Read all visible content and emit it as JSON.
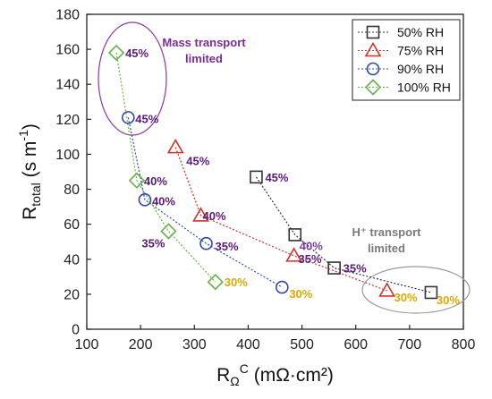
{
  "chart_data": {
    "type": "scatter",
    "xlabel": {
      "base": "R",
      "sub": "Ω",
      "sup": "C",
      "rest": " (mΩ·cm²)"
    },
    "ylabel": {
      "base": "R",
      "sub": "total",
      "rest": " (s m",
      "sup": "-1",
      "close": ")"
    },
    "xlim": [
      100,
      800
    ],
    "ylim": [
      0,
      180
    ],
    "xticks": [
      "100",
      "200",
      "300",
      "400",
      "500",
      "600",
      "700",
      "800"
    ],
    "yticks": [
      "0",
      "20",
      "40",
      "60",
      "80",
      "100",
      "120",
      "140",
      "160",
      "180"
    ],
    "legend_position": "top-right",
    "series": [
      {
        "name": "50% RH",
        "marker": "square",
        "color": "#333333",
        "points": [
          {
            "x": 415,
            "y": 87,
            "label": "45%",
            "label_color": "#5b1a78"
          },
          {
            "x": 487,
            "y": 54,
            "label": "40%",
            "label_color": "#7b3aa8"
          },
          {
            "x": 560,
            "y": 35,
            "label": "35%",
            "label_color": "#5b1a78"
          },
          {
            "x": 740,
            "y": 21,
            "label": "30%",
            "label_color": "#e0a800"
          }
        ]
      },
      {
        "name": "75% RH",
        "marker": "triangle",
        "color": "#d0332b",
        "points": [
          {
            "x": 265,
            "y": 104,
            "label": "45%",
            "label_color": "#5b1a78"
          },
          {
            "x": 312,
            "y": 65,
            "label": "40%",
            "label_color": "#5b1a78"
          },
          {
            "x": 485,
            "y": 42,
            "label": "35%",
            "label_color": "#5b1a78"
          },
          {
            "x": 658,
            "y": 22,
            "label": "30%",
            "label_color": "#e0a800"
          }
        ]
      },
      {
        "name": "90% RH",
        "marker": "circle",
        "color": "#2f48a8",
        "points": [
          {
            "x": 177,
            "y": 121,
            "label": "45%",
            "label_color": "#5b1a78"
          },
          {
            "x": 208,
            "y": 74,
            "label": "40%",
            "label_color": "#5b1a78"
          },
          {
            "x": 322,
            "y": 49,
            "label": "35%",
            "label_color": "#5b1a78"
          },
          {
            "x": 463,
            "y": 24,
            "label": "30%",
            "label_color": "#e0a800"
          }
        ]
      },
      {
        "name": "100% RH",
        "marker": "diamond",
        "color": "#66b04a",
        "points": [
          {
            "x": 155,
            "y": 158,
            "label": "45%",
            "label_color": "#5b1a78"
          },
          {
            "x": 193,
            "y": 85,
            "label": "40%",
            "label_color": "#5b1a78"
          },
          {
            "x": 252,
            "y": 56,
            "label": "35%",
            "label_color": "#5b1a78"
          },
          {
            "x": 339,
            "y": 27,
            "label": "30%",
            "label_color": "#e0a800"
          }
        ]
      }
    ],
    "annotations": [
      {
        "text_lines": [
          "Mass transport",
          "limited"
        ],
        "color": "#7b2a9a",
        "ellipse_color": "#8a3aa8",
        "near": {
          "x": 165,
          "y": 135
        }
      },
      {
        "text_lines": [
          "H⁺ transport",
          "limited"
        ],
        "color": "#7a7a7a",
        "ellipse_color": "#9a9a9a",
        "near": {
          "x": 700,
          "y": 22
        }
      }
    ]
  }
}
